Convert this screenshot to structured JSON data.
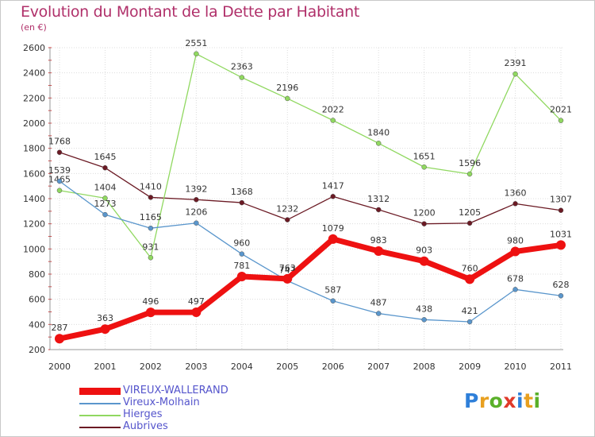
{
  "title": "Evolution du Montant de la Dette par Habitant",
  "subtitle": "(en €)",
  "logo": {
    "parts": [
      "P",
      "r",
      "o",
      "x",
      "i",
      "t",
      "i"
    ],
    "colors": [
      "#2e7fd9",
      "#e8a020",
      "#5ab02a",
      "#e03a2a",
      "#2e7fd9",
      "#e8a020",
      "#5ab02a"
    ]
  },
  "chart_data": {
    "type": "line",
    "categories": [
      "2000",
      "2001",
      "2002",
      "2003",
      "2004",
      "2005",
      "2006",
      "2007",
      "2008",
      "2009",
      "2010",
      "2011"
    ],
    "ylim": [
      200,
      2600
    ],
    "yticks": [
      200,
      400,
      600,
      800,
      1000,
      1200,
      1400,
      1600,
      1800,
      2000,
      2200,
      2400,
      2600
    ],
    "grid": true,
    "legend_position": "bottom-left",
    "series": [
      {
        "name": "Aubrives",
        "color": "#6b1a24",
        "values": [
          1768,
          1645,
          1410,
          1392,
          1368,
          1232,
          1417,
          1312,
          1200,
          1205,
          1360,
          1307
        ],
        "labels": [
          "1768",
          "1645",
          "1410",
          "1392",
          "1368",
          "1232",
          "1417",
          "1312",
          "1200",
          "1205",
          "1360",
          "1307"
        ]
      },
      {
        "name": "Hierges",
        "color": "#90d860",
        "values": [
          1465,
          1404,
          931,
          2551,
          2363,
          2196,
          2022,
          1840,
          1651,
          1596,
          2391,
          2021
        ],
        "labels": [
          "1465",
          "1404",
          "931",
          "2551",
          "2363",
          "2196",
          "2022",
          "1840",
          "1651",
          "1596",
          "2391",
          "2021"
        ]
      },
      {
        "name": "Vireux-Molhain",
        "color": "#5a96cc",
        "values": [
          1539,
          1273,
          1165,
          1206,
          960,
          747,
          587,
          487,
          438,
          421,
          678,
          628
        ],
        "labels": [
          "1539",
          "1273",
          "1165",
          "1206",
          "960",
          "747",
          "587",
          "487",
          "438",
          "421",
          "678",
          "628"
        ]
      },
      {
        "name": "VIREUX-WALLERAND",
        "color": "#ee1111",
        "values": [
          287,
          363,
          496,
          497,
          781,
          763,
          1079,
          983,
          903,
          760,
          980,
          1031
        ],
        "labels": [
          "287",
          "363",
          "496",
          "497",
          "781",
          "763",
          "1079",
          "983",
          "903",
          "760",
          "980",
          "1031"
        ]
      }
    ],
    "legend": [
      {
        "name": "VIREUX-WALLERAND",
        "color": "#ee1111"
      },
      {
        "name": "Vireux-Molhain",
        "color": "#5a96cc"
      },
      {
        "name": "Hierges",
        "color": "#90d860"
      },
      {
        "name": "Aubrives",
        "color": "#6b1a24"
      }
    ]
  }
}
